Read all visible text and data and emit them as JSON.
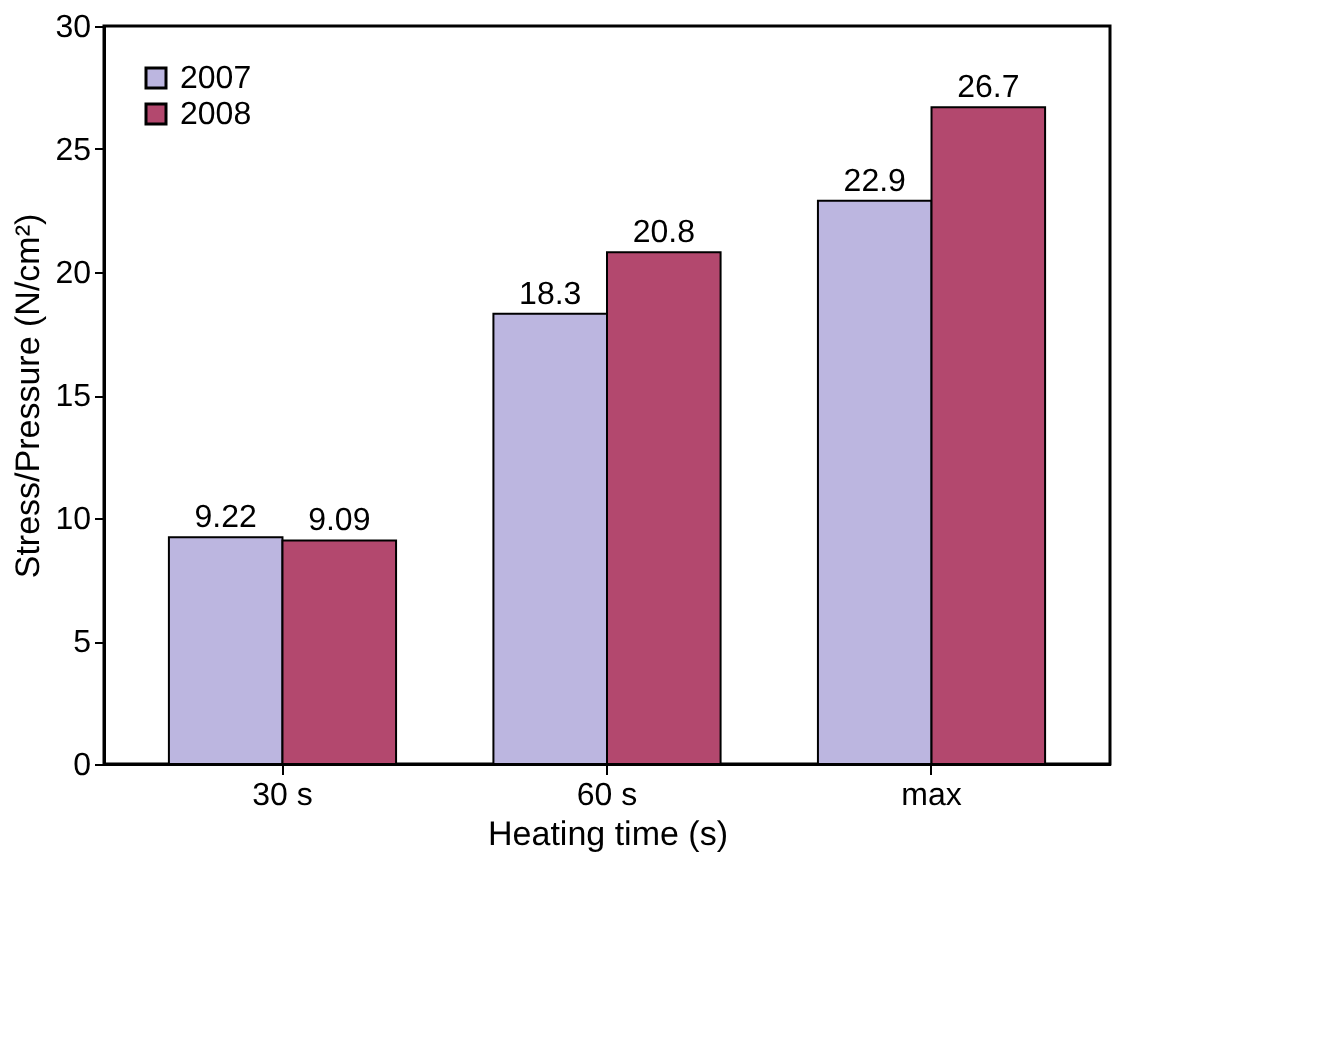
{
  "chart_data": {
    "type": "bar",
    "xlabel": "Heating time (s)",
    "ylabel": "Stress/Pressure (N/cm²)",
    "categories": [
      "30 s",
      "60 s",
      "max"
    ],
    "series": [
      {
        "name": "2007",
        "color": "#bcb6e0",
        "values": [
          9.22,
          18.3,
          22.9
        ]
      },
      {
        "name": "2008",
        "color": "#b3486e",
        "values": [
          9.09,
          20.8,
          26.7
        ]
      }
    ],
    "ylim": [
      0,
      30
    ],
    "yticks": [
      0,
      5,
      10,
      15,
      20,
      25,
      30
    ],
    "grid": false,
    "legend": "top left",
    "data_labels": true
  }
}
